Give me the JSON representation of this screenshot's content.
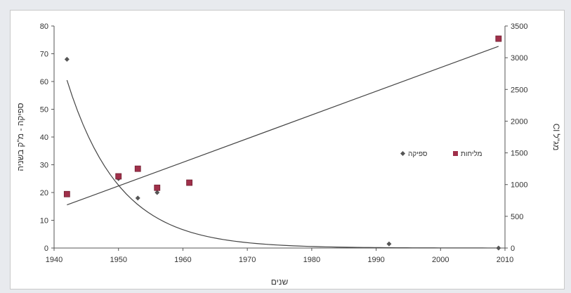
{
  "chart_data": {
    "type": "scatter",
    "x_axis": {
      "label": "שנים",
      "min": 1940,
      "max": 2010,
      "ticks": [
        1940,
        1950,
        1960,
        1970,
        1980,
        1990,
        2000,
        2010
      ]
    },
    "y_left": {
      "label": "ספיקה - מ\"ק בשניה",
      "min": 0,
      "max": 80,
      "ticks": [
        0,
        10,
        20,
        30,
        40,
        50,
        60,
        70,
        80
      ]
    },
    "y_right": {
      "label": "Cl מג\"ל",
      "min": 0,
      "max": 3500,
      "ticks": [
        0,
        500,
        1000,
        1500,
        2000,
        2500,
        3000,
        3500
      ]
    },
    "series": [
      {
        "name": "ספיקה",
        "axis": "left",
        "marker": "diamond",
        "color": "#555555",
        "points": [
          {
            "x": 1942,
            "y": 68
          },
          {
            "x": 1950,
            "y": 25
          },
          {
            "x": 1953,
            "y": 18
          },
          {
            "x": 1956,
            "y": 20
          },
          {
            "x": 1992,
            "y": 1.5
          },
          {
            "x": 2009,
            "y": 0
          }
        ],
        "trend": {
          "type": "exponential",
          "from": 1942,
          "to": 2009,
          "a_at_1942": 60.5,
          "rate": 0.123
        }
      },
      {
        "name": "מליחות",
        "axis": "right",
        "marker": "square",
        "color": "#a0304a",
        "points": [
          {
            "x": 1942,
            "y": 850
          },
          {
            "x": 1950,
            "y": 1130
          },
          {
            "x": 1953,
            "y": 1250
          },
          {
            "x": 1956,
            "y": 950
          },
          {
            "x": 1961,
            "y": 1030
          },
          {
            "x": 2009,
            "y": 3300
          }
        ],
        "trend": {
          "type": "linear",
          "from": 1942,
          "to": 2009,
          "y_from": 680,
          "y_to": 3180
        }
      }
    ],
    "legend": {
      "position": "right-middle"
    }
  }
}
